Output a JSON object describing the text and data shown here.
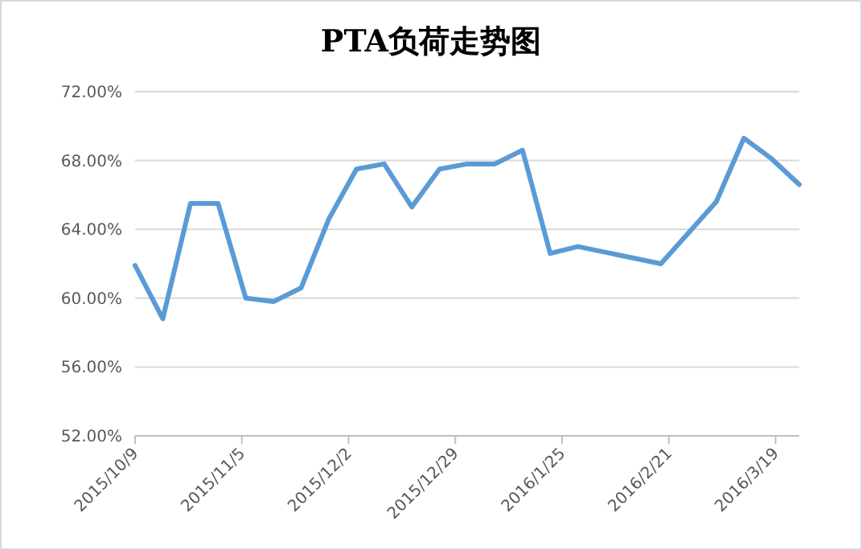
{
  "chart_data": {
    "type": "line",
    "title": "PTA负荷走势图",
    "x": [
      "2015-10-09",
      "2015-10-16",
      "2015-10-23",
      "2015-10-30",
      "2015-11-06",
      "2015-11-13",
      "2015-11-20",
      "2015-11-27",
      "2015-12-04",
      "2015-12-11",
      "2015-12-18",
      "2015-12-25",
      "2016-01-01",
      "2016-01-08",
      "2016-01-15",
      "2016-01-22",
      "2016-01-29",
      "2016-02-19",
      "2016-02-26",
      "2016-03-04",
      "2016-03-11",
      "2016-03-18",
      "2016-03-25"
    ],
    "series": [
      {
        "color": "#5b9bd5",
        "values": [
          61.9,
          58.8,
          65.5,
          65.5,
          60.0,
          59.8,
          60.6,
          64.6,
          67.5,
          67.8,
          65.3,
          67.5,
          67.8,
          67.8,
          68.6,
          62.6,
          63.0,
          62.0,
          63.8,
          65.6,
          69.3,
          68.1,
          66.6
        ]
      }
    ],
    "xlim": [
      "2015-10-09",
      "2016-03-25"
    ],
    "xticks": [
      {
        "value": "2015-10-09",
        "label": "2015/10/9"
      },
      {
        "value": "2015-11-05",
        "label": "2015/11/5"
      },
      {
        "value": "2015-12-02",
        "label": "2015/12/2"
      },
      {
        "value": "2015-12-29",
        "label": "2015/12/29"
      },
      {
        "value": "2016-01-25",
        "label": "2016/1/25"
      },
      {
        "value": "2016-02-21",
        "label": "2016/2/21"
      },
      {
        "value": "2016-03-19",
        "label": "2016/3/19"
      }
    ],
    "ylim": [
      52,
      72
    ],
    "yticks": [
      {
        "value": 52,
        "label": "52.00%"
      },
      {
        "value": 56,
        "label": "56.00%"
      },
      {
        "value": 60,
        "label": "60.00%"
      },
      {
        "value": 64,
        "label": "64.00%"
      },
      {
        "value": 68,
        "label": "68.00%"
      },
      {
        "value": 72,
        "label": "72.00%"
      }
    ],
    "grid": "y",
    "marker": "none",
    "line_style": "solid"
  }
}
